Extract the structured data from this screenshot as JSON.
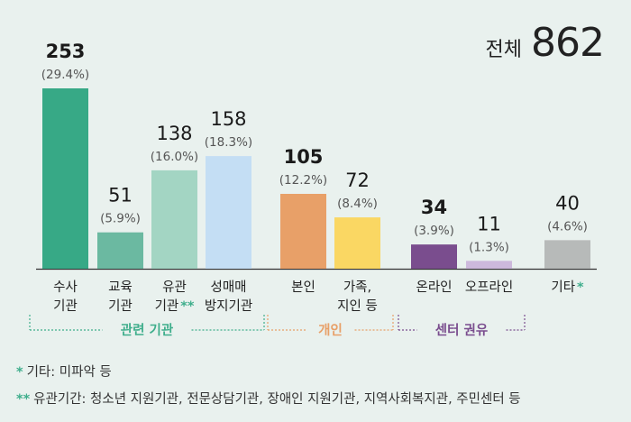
{
  "total": {
    "label": "전체",
    "value": "862"
  },
  "chart_data": {
    "type": "bar",
    "title": "",
    "xlabel": "",
    "ylabel": "",
    "ylim": [
      0,
      253
    ],
    "grid": false,
    "bars": [
      {
        "label": [
          "수사",
          "기관"
        ],
        "value": 253,
        "value_text": "253",
        "pct": "(29.4%)",
        "color": "#37a986",
        "bold": true
      },
      {
        "label": [
          "교육",
          "기관"
        ],
        "value": 51,
        "value_text": "51",
        "pct": "(5.9%)",
        "color": "#6bb9a1",
        "bold": false
      },
      {
        "label": [
          "유관",
          "기관"
        ],
        "value": 138,
        "value_text": "138",
        "pct": "(16.0%)",
        "color": "#a3d5c3",
        "bold": false,
        "mark": "**"
      },
      {
        "label": [
          "성매매",
          "방지기관"
        ],
        "value": 158,
        "value_text": "158",
        "pct": "(18.3%)",
        "color": "#c4def4",
        "bold": false
      },
      {
        "label": [
          "본인"
        ],
        "value": 105,
        "value_text": "105",
        "pct": "(12.2%)",
        "color": "#e8a068",
        "bold": true
      },
      {
        "label": [
          "가족,",
          "지인 등"
        ],
        "value": 72,
        "value_text": "72",
        "pct": "(8.4%)",
        "color": "#fad763",
        "bold": false
      },
      {
        "label": [
          "온라인"
        ],
        "value": 34,
        "value_text": "34",
        "pct": "(3.9%)",
        "color": "#7a4d8e",
        "bold": true
      },
      {
        "label": [
          "오프라인"
        ],
        "value": 11,
        "value_text": "11",
        "pct": "(1.3%)",
        "color": "#cdb9dc",
        "bold": false
      },
      {
        "label": [
          "기타"
        ],
        "value": 40,
        "value_text": "40",
        "pct": "(4.6%)",
        "color": "#b7bab9",
        "bold": false,
        "mark": "*"
      }
    ],
    "groups": [
      {
        "label": "관련 기관",
        "color": "#3fae8c",
        "from": 0,
        "to": 3
      },
      {
        "label": "개인",
        "color": "#e8a068",
        "from": 4,
        "to": 5
      },
      {
        "label": "센터 권유",
        "color": "#7a4d8e",
        "from": 6,
        "to": 7
      }
    ],
    "mark_color": "#3fae8c"
  },
  "notes": [
    {
      "mark": "*",
      "text": "기타: 미파악 등"
    },
    {
      "mark": "**",
      "text": "유관기간: 청소년 지원기관, 전문상담기관, 장애인 지원기관, 지역사회복지관, 주민센터 등"
    }
  ]
}
